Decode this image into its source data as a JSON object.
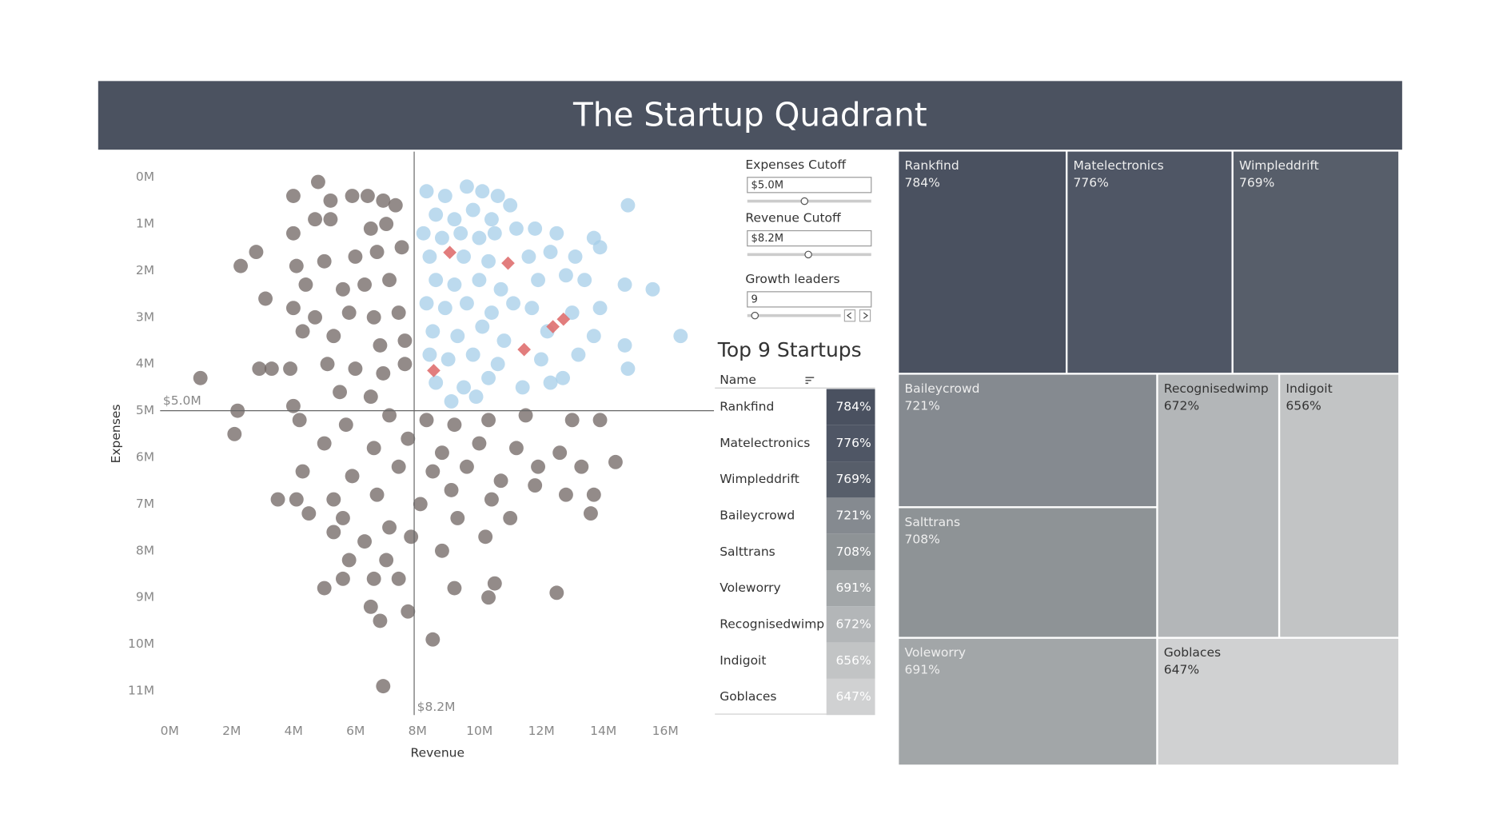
{
  "title": "The Startup Quadrant",
  "chart_data": {
    "type": "scatter",
    "x_label": "Revenue",
    "y_label": "Expenses",
    "xlim": [
      0,
      17.8
    ],
    "ylim": [
      -0.55,
      11.6
    ],
    "y_inverted": true,
    "xticks": [
      {
        "value": 0,
        "label": "0M"
      },
      {
        "value": 2,
        "label": "2M"
      },
      {
        "value": 4,
        "label": "4M"
      },
      {
        "value": 6,
        "label": "6M"
      },
      {
        "value": 8,
        "label": "8M"
      },
      {
        "value": 10,
        "label": "10M"
      },
      {
        "value": 12,
        "label": "12M"
      },
      {
        "value": 14,
        "label": "14M"
      },
      {
        "value": 16,
        "label": "16M"
      }
    ],
    "yticks": [
      {
        "value": 0,
        "label": "0M"
      },
      {
        "value": 1,
        "label": "1M"
      },
      {
        "value": 2,
        "label": "2M"
      },
      {
        "value": 3,
        "label": "3M"
      },
      {
        "value": 4,
        "label": "4M"
      },
      {
        "value": 5,
        "label": "5M"
      },
      {
        "value": 6,
        "label": "6M"
      },
      {
        "value": 7,
        "label": "7M"
      },
      {
        "value": 8,
        "label": "8M"
      },
      {
        "value": 9,
        "label": "9M"
      },
      {
        "value": 10,
        "label": "10M"
      },
      {
        "value": 11,
        "label": "11M"
      }
    ],
    "y_reference": {
      "value": 5.0,
      "label": "$5.0M"
    },
    "x_reference": {
      "value": 8.2,
      "label": "$8.2M"
    },
    "series": [
      {
        "color": "#6f6461",
        "marker": "circle",
        "x": [
          5.1,
          4.3,
          5.5,
          6.2,
          6.7,
          7.2,
          7.6,
          5.0,
          5.5,
          4.3,
          6.8,
          7.3,
          3.1,
          2.6,
          4.4,
          5.3,
          6.3,
          7.0,
          7.8,
          3.4,
          4.7,
          5.9,
          6.6,
          7.4,
          4.3,
          5.0,
          6.1,
          6.9,
          7.7,
          4.6,
          5.6,
          7.1,
          7.9,
          1.3,
          3.2,
          3.6,
          4.2,
          5.4,
          6.3,
          7.2,
          7.9,
          4.3,
          5.8,
          6.8,
          2.5,
          2.4,
          4.5,
          6.0,
          7.4,
          8.6,
          9.5,
          10.6,
          11.8,
          13.3,
          14.2,
          5.3,
          6.9,
          8.0,
          9.1,
          10.3,
          11.5,
          12.9,
          14.7,
          4.6,
          6.2,
          7.7,
          8.8,
          9.9,
          11.0,
          12.2,
          13.6,
          3.8,
          4.4,
          5.6,
          7.0,
          8.4,
          9.4,
          10.7,
          12.1,
          13.1,
          14.0,
          4.8,
          5.9,
          7.4,
          9.6,
          11.3,
          13.9,
          5.6,
          6.6,
          8.1,
          10.5,
          6.1,
          7.3,
          9.1,
          5.9,
          6.9,
          5.3,
          7.7,
          10.8,
          6.8,
          9.5,
          10.6,
          12.8,
          8.0,
          7.1,
          8.8,
          7.2
        ],
        "values": [
          0.1,
          0.4,
          0.5,
          0.4,
          0.4,
          0.5,
          0.6,
          0.9,
          0.9,
          1.2,
          1.1,
          1.0,
          1.6,
          1.9,
          1.9,
          1.8,
          1.7,
          1.6,
          1.5,
          2.6,
          2.3,
          2.4,
          2.3,
          2.2,
          2.8,
          3.0,
          2.9,
          3.0,
          2.9,
          3.3,
          3.4,
          3.6,
          3.5,
          4.3,
          4.1,
          4.1,
          4.1,
          4.0,
          4.1,
          4.2,
          4.0,
          4.9,
          4.6,
          4.7,
          5.0,
          5.5,
          5.2,
          5.3,
          5.1,
          5.2,
          5.3,
          5.2,
          5.1,
          5.2,
          5.2,
          5.7,
          5.8,
          5.6,
          5.9,
          5.7,
          5.8,
          5.9,
          6.1,
          6.3,
          6.4,
          6.2,
          6.3,
          6.2,
          6.5,
          6.2,
          6.2,
          6.9,
          6.9,
          6.9,
          6.8,
          7.0,
          6.7,
          6.9,
          6.6,
          6.8,
          6.8,
          7.2,
          7.3,
          7.5,
          7.3,
          7.3,
          7.2,
          7.6,
          7.8,
          7.7,
          7.7,
          8.2,
          8.2,
          8.0,
          8.6,
          8.6,
          8.8,
          8.6,
          8.7,
          9.2,
          8.8,
          9.0,
          8.9,
          9.3,
          9.5,
          9.9,
          10.9
        ]
      },
      {
        "color": "#a5cde8",
        "marker": "circle",
        "x": [
          8.6,
          9.2,
          9.9,
          10.4,
          10.9,
          8.9,
          9.5,
          10.1,
          10.7,
          11.3,
          15.1,
          8.5,
          9.1,
          9.7,
          10.3,
          10.8,
          11.5,
          12.1,
          12.8,
          14.0,
          14.2,
          8.7,
          9.8,
          10.6,
          11.9,
          12.6,
          13.4,
          8.9,
          9.5,
          10.3,
          11.0,
          12.2,
          13.1,
          13.7,
          15.0,
          15.9,
          8.6,
          9.2,
          9.9,
          10.7,
          11.4,
          12.0,
          13.3,
          14.2,
          8.8,
          9.6,
          10.4,
          11.1,
          12.5,
          14.0,
          15.0,
          16.8,
          8.7,
          9.3,
          10.1,
          10.9,
          12.3,
          13.5,
          15.1,
          8.9,
          9.8,
          10.6,
          11.7,
          12.6,
          13.0,
          9.4,
          10.2
        ],
        "values": [
          0.3,
          0.4,
          0.2,
          0.3,
          0.4,
          0.8,
          0.9,
          0.7,
          0.9,
          0.6,
          0.6,
          1.2,
          1.3,
          1.2,
          1.3,
          1.2,
          1.1,
          1.1,
          1.2,
          1.3,
          1.5,
          1.7,
          1.7,
          1.8,
          1.7,
          1.6,
          1.7,
          2.2,
          2.3,
          2.2,
          2.4,
          2.2,
          2.1,
          2.2,
          2.3,
          2.4,
          2.7,
          2.8,
          2.7,
          2.9,
          2.7,
          2.8,
          2.9,
          2.8,
          3.3,
          3.4,
          3.2,
          3.5,
          3.3,
          3.4,
          3.6,
          3.4,
          3.8,
          3.9,
          3.8,
          4.0,
          3.9,
          3.8,
          4.1,
          4.4,
          4.5,
          4.3,
          4.5,
          4.4,
          4.3,
          4.8,
          4.7
        ]
      },
      {
        "color": "#df6f6f",
        "marker": "diamond",
        "x": [
          9.35,
          11.23,
          13.02,
          12.68,
          11.75,
          8.83
        ],
        "values": [
          1.61,
          1.84,
          3.04,
          3.2,
          3.69,
          4.14
        ]
      }
    ]
  },
  "controls": [
    {
      "label": "Expenses Cutoff",
      "value": "$5.0M"
    },
    {
      "label": "Revenue Cutoff",
      "value": "$8.2M"
    },
    {
      "label": "Growth leaders",
      "value": "9"
    }
  ],
  "table": {
    "title": "Top 9 Startups",
    "header": "Name",
    "rows": [
      {
        "name": "Rankfind",
        "growth": "784%",
        "color": "#4a5160"
      },
      {
        "name": "Matelectronics",
        "growth": "776%",
        "color": "#4f5665"
      },
      {
        "name": "Wimpleddrift",
        "growth": "769%",
        "color": "#575e6a"
      },
      {
        "name": "Baileycrowd",
        "growth": "721%",
        "color": "#858a90"
      },
      {
        "name": "Salttrans",
        "growth": "708%",
        "color": "#8e9396"
      },
      {
        "name": "Voleworry",
        "growth": "691%",
        "color": "#a2a6a8"
      },
      {
        "name": "Recognisedwimp",
        "growth": "672%",
        "color": "#b3b6b8"
      },
      {
        "name": "Indigoit",
        "growth": "656%",
        "color": "#c2c4c5"
      },
      {
        "name": "Goblaces",
        "growth": "647%",
        "color": "#d0d1d2"
      }
    ]
  }
}
